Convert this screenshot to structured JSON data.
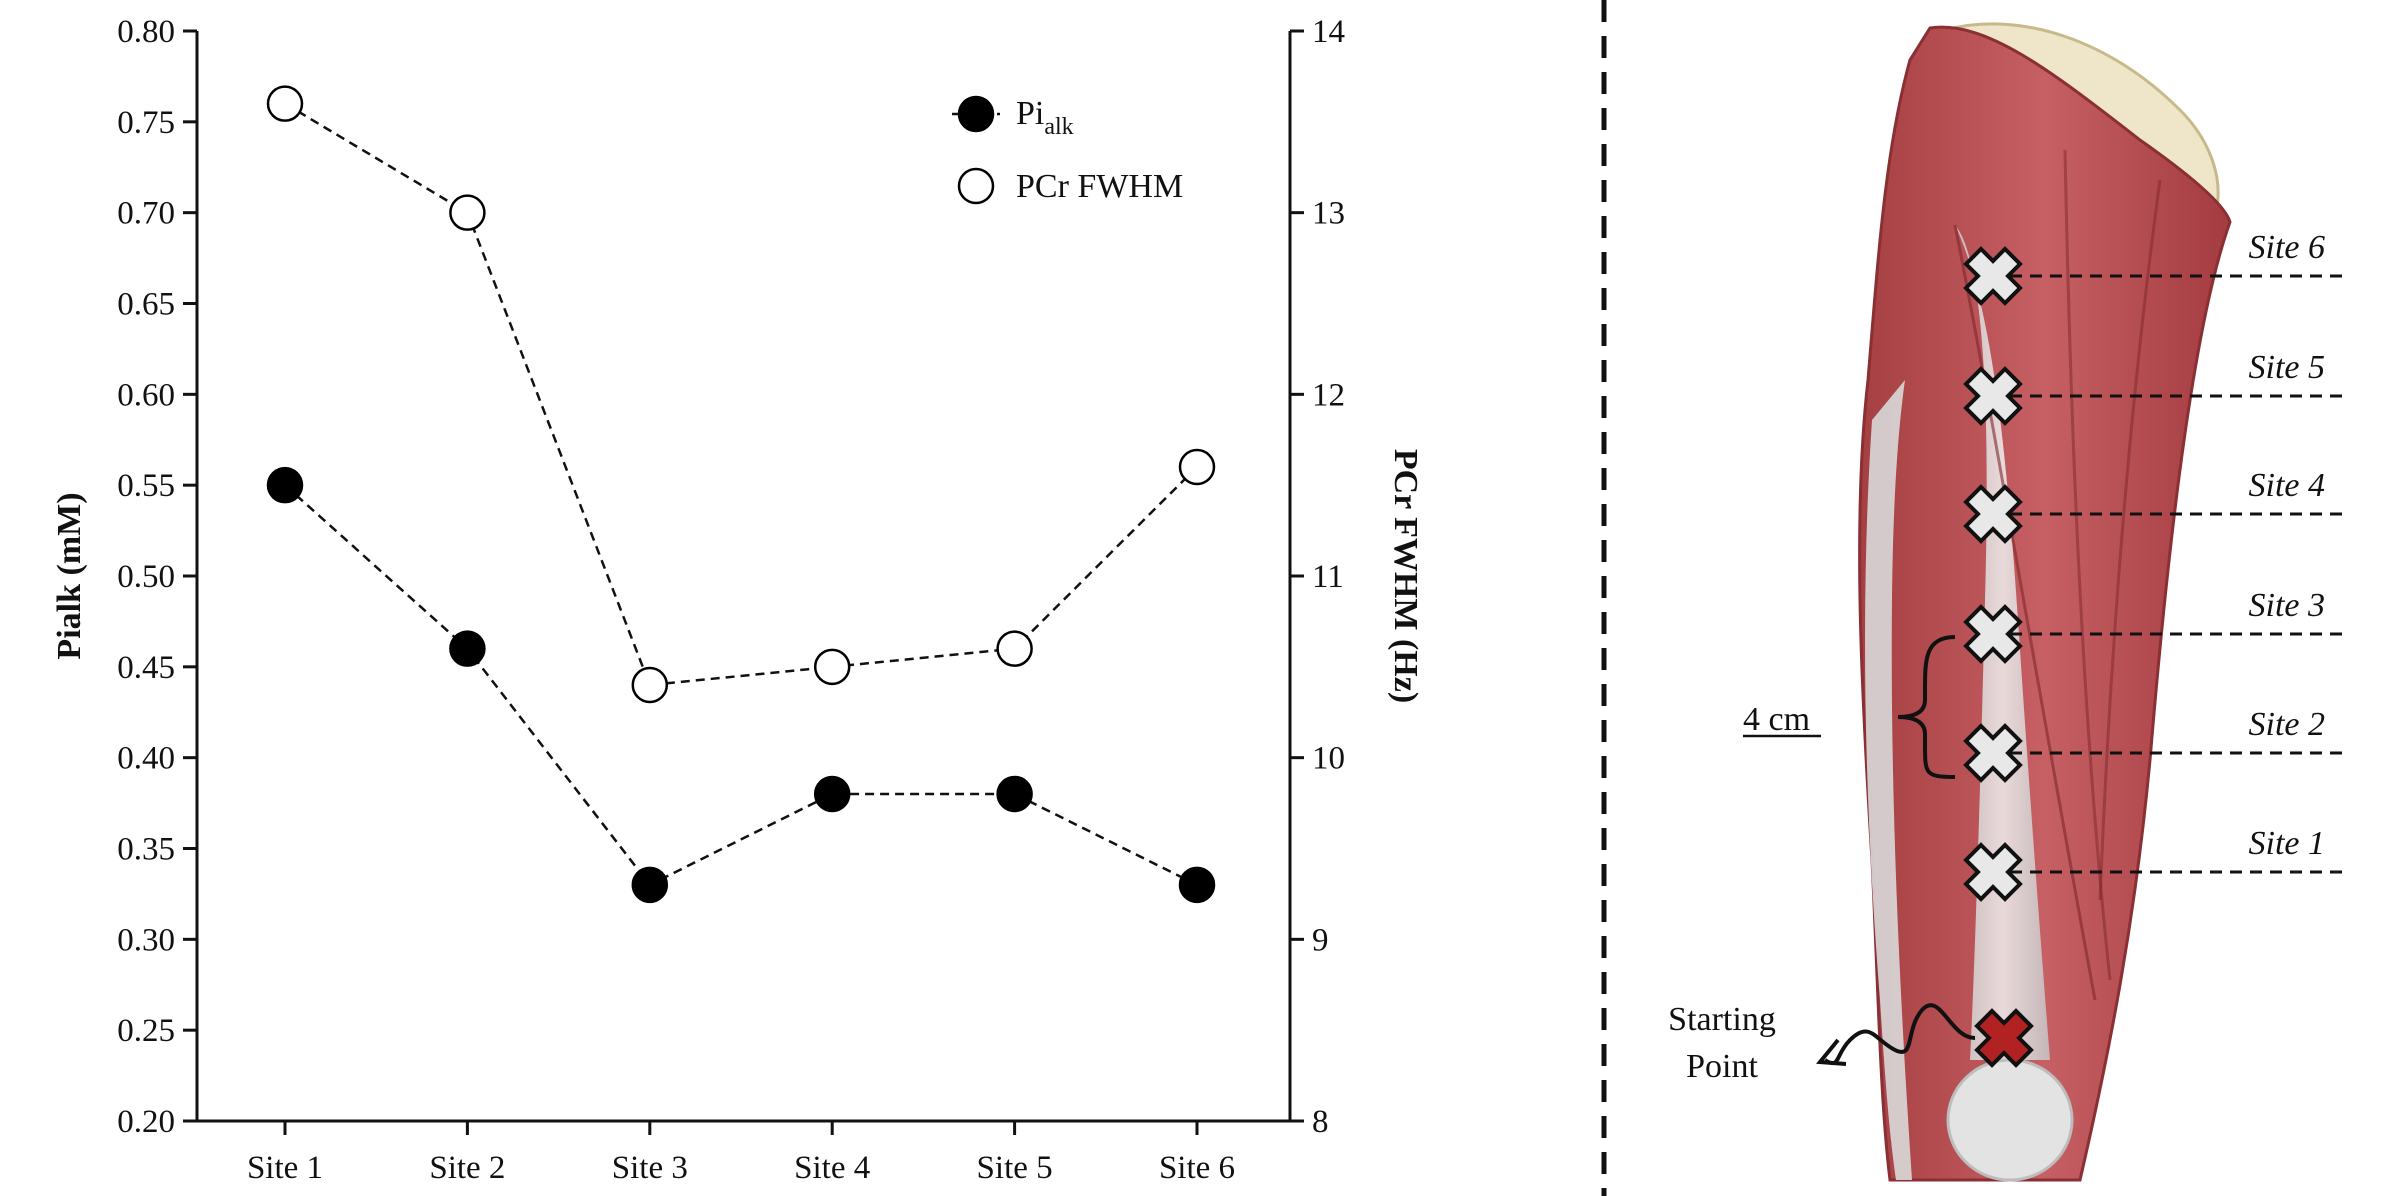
{
  "chart_data": {
    "type": "line",
    "categories": [
      "Site 1",
      "Site 2",
      "Site 3",
      "Site 4",
      "Site 5",
      "Site 6"
    ],
    "series": [
      {
        "name": "Pialk",
        "name_main": "Pi",
        "name_sub": "alk",
        "axis": "left",
        "marker": "filled-circle",
        "values": [
          0.55,
          0.46,
          0.33,
          0.38,
          0.38,
          0.33
        ]
      },
      {
        "name": "PCr FWHM",
        "axis": "right",
        "marker": "open-circle",
        "values": [
          13.6,
          13.0,
          10.4,
          10.5,
          10.6,
          11.6
        ]
      }
    ],
    "ylabel_left": "Pialk (mM)",
    "ylabel_right": "PCr FWHM (Hz)",
    "ylim_left": [
      0.2,
      0.8
    ],
    "yticks_left": [
      "0.20",
      "0.25",
      "0.30",
      "0.35",
      "0.40",
      "0.45",
      "0.50",
      "0.55",
      "0.60",
      "0.65",
      "0.70",
      "0.75",
      "0.80"
    ],
    "ylim_right": [
      8,
      14
    ],
    "yticks_right": [
      "8",
      "9",
      "10",
      "11",
      "12",
      "13",
      "14"
    ],
    "grid": false,
    "legend_position": "top-right"
  },
  "diagram": {
    "site_labels": [
      "Site 1",
      "Site 2",
      "Site 3",
      "Site 4",
      "Site 5",
      "Site 6"
    ],
    "spacing_label": "4 cm",
    "start_label_line1": "Starting",
    "start_label_line2": "Point",
    "colors": {
      "muscle": "#b94e4e",
      "tendon": "#dcdcdc",
      "bone": "#efe5c8",
      "start_marker": "#b32222",
      "site_marker": "#e8e8e8"
    }
  }
}
